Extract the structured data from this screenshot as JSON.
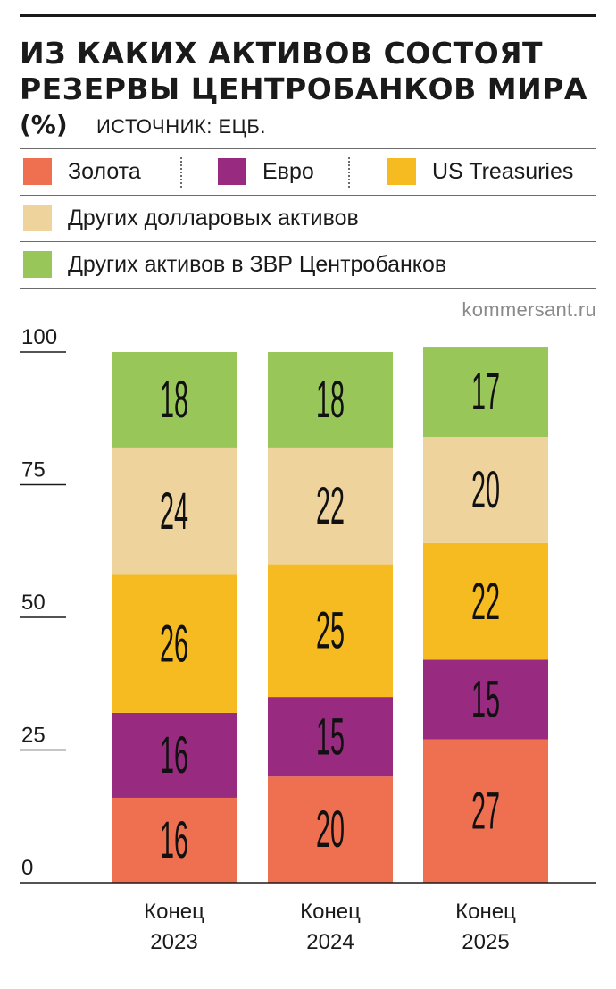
{
  "header": {
    "title_lines": [
      "ИЗ КАКИХ АКТИВОВ СОСТОЯТ",
      "РЕЗЕРВЫ ЦЕНТРОБАНКОВ МИРА"
    ],
    "unit": "(%)",
    "source": "ИСТОЧНИК: ЕЦБ."
  },
  "legend": [
    {
      "label": "Золота",
      "color": "#ef7050"
    },
    {
      "label": "Евро",
      "color": "#982b80"
    },
    {
      "label": "US Treasuries",
      "color": "#f6bb21"
    },
    {
      "label": "Других долларовых активов",
      "color": "#efd39c"
    },
    {
      "label": "Других активов в ЗВР Центробанков",
      "color": "#98c659"
    }
  ],
  "site": "kommersant.ru",
  "chart_data": {
    "type": "bar",
    "stacked": true,
    "categories": [
      "Конец 2023",
      "Конец 2024",
      "Конец 2025"
    ],
    "category_lines": [
      [
        "Конец",
        "2023"
      ],
      [
        "Конец",
        "2024"
      ],
      [
        "Конец",
        "2025"
      ]
    ],
    "series": [
      {
        "name": "Золота",
        "values": [
          16,
          20,
          27
        ],
        "color": "#ef7050"
      },
      {
        "name": "Евро",
        "values": [
          16,
          15,
          15
        ],
        "color": "#982b80"
      },
      {
        "name": "US Treasuries",
        "values": [
          26,
          25,
          22
        ],
        "color": "#f6bb21"
      },
      {
        "name": "Других долларовых активов",
        "values": [
          24,
          22,
          20
        ],
        "color": "#efd39c"
      },
      {
        "name": "Других активов в ЗВР Центробанков",
        "values": [
          18,
          18,
          17
        ],
        "color": "#98c659"
      }
    ],
    "yticks": [
      0,
      25,
      50,
      75,
      100
    ],
    "ylim": [
      0,
      100
    ],
    "legend_position": "top",
    "grid": false
  }
}
